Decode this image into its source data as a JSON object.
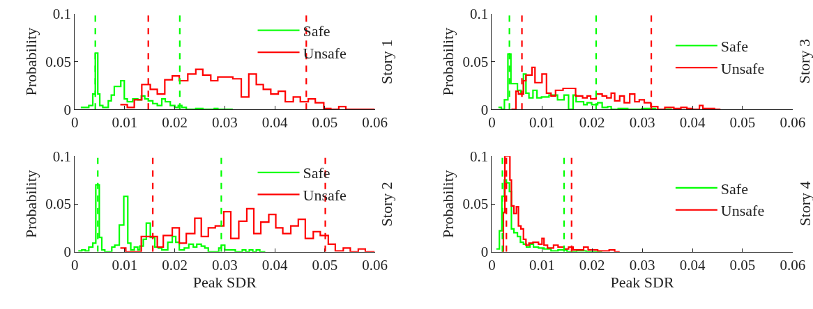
{
  "chart_data": [
    {
      "type": "step",
      "ylabel": "Probability",
      "annotations": [
        "Story 1"
      ],
      "xlim": [
        0,
        0.06
      ],
      "xticks": [
        0,
        0.01,
        0.02,
        0.03,
        0.04,
        0.05,
        0.06
      ],
      "ylim": [
        0,
        0.1
      ],
      "yticks": [
        0,
        0.05,
        0.1
      ],
      "legend": "top right",
      "marker": "none",
      "line_style": "solid",
      "series": [
        {
          "name": "Safe",
          "color": "#00ff00",
          "x": [
            0.0012,
            0.0028,
            0.0036,
            0.0041,
            0.0046,
            0.005,
            0.0056,
            0.0067,
            0.0073,
            0.0079,
            0.0092,
            0.0099,
            0.0105,
            0.0116,
            0.0126,
            0.0133,
            0.014,
            0.0147,
            0.0156,
            0.0165,
            0.0174,
            0.0181,
            0.0191,
            0.02,
            0.0207,
            0.0214,
            0.0223,
            0.0242,
            0.0256,
            0.0279,
            0.0286,
            0.0316
          ],
          "values": [
            0.002,
            0.004,
            0.016,
            0.059,
            0.016,
            0.004,
            0.002,
            0.009,
            0.015,
            0.024,
            0.03,
            0.011,
            0.008,
            0.011,
            0.01,
            0.014,
            0.011,
            0.009,
            0.006,
            0.004,
            0.011,
            0.008,
            0.004,
            0.002,
            0.004,
            0.002,
            0,
            0.001,
            0,
            0.001,
            0,
            0
          ]
        },
        {
          "name": "Unsafe",
          "color": "#ff0000",
          "x": [
            0.0091,
            0.0105,
            0.0119,
            0.0134,
            0.0151,
            0.0165,
            0.018,
            0.0195,
            0.0209,
            0.0226,
            0.0242,
            0.0256,
            0.0272,
            0.0286,
            0.0316,
            0.0333,
            0.0348,
            0.0363,
            0.0377,
            0.0392,
            0.0407,
            0.0421,
            0.0437,
            0.0451,
            0.0467,
            0.0481,
            0.0498,
            0.0512,
            0.0528,
            0.0542,
            0.0558,
            0.06
          ],
          "values": [
            0.005,
            0.002,
            0.01,
            0.026,
            0.021,
            0.016,
            0.031,
            0.035,
            0.03,
            0.037,
            0.042,
            0.036,
            0.03,
            0.034,
            0.032,
            0.013,
            0.037,
            0.026,
            0.021,
            0.016,
            0.019,
            0.008,
            0.013,
            0.008,
            0.011,
            0.007,
            0.001,
            0,
            0.003,
            0,
            0,
            0
          ]
        }
      ],
      "ref_lines": [
        {
          "axis": "x",
          "value": 0.0041,
          "color": "#00ff00",
          "line_style": "dashed"
        },
        {
          "axis": "x",
          "value": 0.021,
          "color": "#00ff00",
          "line_style": "dashed"
        },
        {
          "axis": "x",
          "value": 0.0147,
          "color": "#ff0000",
          "line_style": "dashed"
        },
        {
          "axis": "x",
          "value": 0.0463,
          "color": "#ff0000",
          "line_style": "dashed"
        }
      ]
    },
    {
      "type": "step",
      "ylabel": "Probability",
      "annotations": [
        "Story 3"
      ],
      "xlim": [
        0,
        0.06
      ],
      "xticks": [
        0,
        0.01,
        0.02,
        0.03,
        0.04,
        0.05,
        0.06
      ],
      "ylim": [
        0,
        0.1
      ],
      "yticks": [
        0,
        0.05,
        0.1
      ],
      "legend": "right",
      "marker": "none",
      "line_style": "solid",
      "series": [
        {
          "name": "Safe",
          "color": "#00ff00",
          "x": [
            0.0013,
            0.0019,
            0.0025,
            0.0032,
            0.0038,
            0.0051,
            0.0058,
            0.0063,
            0.0068,
            0.0074,
            0.0082,
            0.009,
            0.0099,
            0.0114,
            0.0131,
            0.0144,
            0.0153,
            0.0162,
            0.0168,
            0.0183,
            0.019,
            0.0199,
            0.0211,
            0.022,
            0.0231,
            0.0238,
            0.0252,
            0.0271,
            0.0299,
            0.0326,
            0.0359
          ],
          "values": [
            0.002,
            0,
            0.01,
            0.058,
            0.027,
            0.02,
            0.016,
            0.037,
            0.017,
            0.012,
            0.02,
            0.012,
            0.013,
            0.015,
            0.01,
            0.015,
            0,
            0.015,
            0.008,
            0.005,
            0.007,
            0.005,
            0.007,
            0.002,
            0.003,
            0,
            0.001,
            0,
            0.001,
            0,
            0
          ]
        },
        {
          "name": "Unsafe",
          "color": "#ff0000",
          "x": [
            0.0039,
            0.0048,
            0.0053,
            0.0063,
            0.0068,
            0.0074,
            0.008,
            0.0086,
            0.01,
            0.0109,
            0.0118,
            0.0127,
            0.0142,
            0.0167,
            0.0181,
            0.019,
            0.0197,
            0.0208,
            0.022,
            0.0229,
            0.0238,
            0.0245,
            0.0255,
            0.0264,
            0.0275,
            0.0285,
            0.0294,
            0.0304,
            0.0317,
            0.0331,
            0.0345,
            0.0363,
            0.0377,
            0.0389,
            0.04,
            0.0414,
            0.0421,
            0.0433,
            0.0444,
            0.0456
          ],
          "values": [
            0,
            0.019,
            0.016,
            0.03,
            0.036,
            0.036,
            0.044,
            0.028,
            0.037,
            0.017,
            0.014,
            0.02,
            0.022,
            0.014,
            0.012,
            0.014,
            0.011,
            0.016,
            0.014,
            0.012,
            0.017,
            0.009,
            0.014,
            0.007,
            0.016,
            0.008,
            0.01,
            0.007,
            0.003,
            0,
            0.002,
            0.001,
            0.002,
            0.001,
            0,
            0.004,
            0.001,
            0.001,
            0,
            0
          ]
        }
      ],
      "ref_lines": [
        {
          "axis": "x",
          "value": 0.0035,
          "color": "#00ff00",
          "line_style": "dashed"
        },
        {
          "axis": "x",
          "value": 0.0208,
          "color": "#00ff00",
          "line_style": "dashed"
        },
        {
          "axis": "x",
          "value": 0.006,
          "color": "#ff0000",
          "line_style": "dashed"
        },
        {
          "axis": "x",
          "value": 0.0318,
          "color": "#ff0000",
          "line_style": "dashed"
        }
      ]
    },
    {
      "type": "step",
      "xlabel": "Peak SDR",
      "ylabel": "Probability",
      "annotations": [
        "Story 2"
      ],
      "xlim": [
        0,
        0.06
      ],
      "xticks": [
        0,
        0.01,
        0.02,
        0.03,
        0.04,
        0.05,
        0.06
      ],
      "ylim": [
        0,
        0.1
      ],
      "yticks": [
        0,
        0.05,
        0.1
      ],
      "legend": "top right",
      "marker": "none",
      "line_style": "solid",
      "series": [
        {
          "name": "Safe",
          "color": "#00ff00",
          "x": [
            0.0007,
            0.0014,
            0.0021,
            0.0028,
            0.0036,
            0.0042,
            0.0049,
            0.0054,
            0.006,
            0.0074,
            0.008,
            0.0089,
            0.0098,
            0.0106,
            0.0112,
            0.0119,
            0.0126,
            0.013,
            0.0137,
            0.0143,
            0.0151,
            0.016,
            0.0167,
            0.0174,
            0.0186,
            0.0195,
            0.0202,
            0.0209,
            0.0219,
            0.0228,
            0.0237,
            0.0244,
            0.0253,
            0.026,
            0.0267,
            0.0288,
            0.0293,
            0.03,
            0.0312,
            0.0321,
            0.0335,
            0.0342,
            0.0349,
            0.0356,
            0.0363,
            0.037,
            0.0381
          ],
          "values": [
            0.001,
            0.002,
            0.001,
            0.005,
            0.009,
            0.07,
            0.015,
            0.002,
            0,
            0.005,
            0.007,
            0.028,
            0.058,
            0.009,
            0.002,
            0.005,
            0.002,
            0.006,
            0.013,
            0.03,
            0.015,
            0.005,
            0.004,
            0.002,
            0.01,
            0.016,
            0.01,
            0.002,
            0.004,
            0.008,
            0.005,
            0.008,
            0.006,
            0.004,
            0,
            0.004,
            0.007,
            0.002,
            0.002,
            0,
            0.002,
            0,
            0.002,
            0,
            0.002,
            0,
            0
          ]
        },
        {
          "name": "Unsafe",
          "color": "#ff0000",
          "x": [
            0.0091,
            0.0102,
            0.0133,
            0.0151,
            0.0165,
            0.0177,
            0.0195,
            0.0209,
            0.0223,
            0.024,
            0.0253,
            0.0267,
            0.0281,
            0.0298,
            0.0312,
            0.0328,
            0.0344,
            0.0358,
            0.0372,
            0.0388,
            0.0402,
            0.0416,
            0.0432,
            0.0447,
            0.0461,
            0.0477,
            0.0491,
            0.0507,
            0.0521,
            0.0537,
            0.0551,
            0.0567,
            0.0581,
            0.06
          ],
          "values": [
            0.004,
            0,
            0.016,
            0.016,
            0.005,
            0.017,
            0.025,
            0.009,
            0.019,
            0.035,
            0.016,
            0.025,
            0.027,
            0.042,
            0.014,
            0.032,
            0.045,
            0.019,
            0.031,
            0.039,
            0.025,
            0.019,
            0.027,
            0.034,
            0.014,
            0.021,
            0.017,
            0.008,
            0.001,
            0.004,
            0,
            0.003,
            0,
            0
          ]
        }
      ],
      "ref_lines": [
        {
          "axis": "x",
          "value": 0.0046,
          "color": "#00ff00",
          "line_style": "dashed"
        },
        {
          "axis": "x",
          "value": 0.0293,
          "color": "#00ff00",
          "line_style": "dashed"
        },
        {
          "axis": "x",
          "value": 0.0156,
          "color": "#ff0000",
          "line_style": "dashed"
        },
        {
          "axis": "x",
          "value": 0.0501,
          "color": "#ff0000",
          "line_style": "dashed"
        }
      ]
    },
    {
      "type": "step",
      "xlabel": "Peak SDR",
      "ylabel": "Probability",
      "annotations": [
        "Story 4"
      ],
      "xlim": [
        0,
        0.06
      ],
      "xticks": [
        0,
        0.01,
        0.02,
        0.03,
        0.04,
        0.05,
        0.06
      ],
      "ylim": [
        0,
        0.1
      ],
      "yticks": [
        0,
        0.05,
        0.1
      ],
      "legend": "right",
      "marker": "none",
      "line_style": "solid",
      "series": [
        {
          "name": "Safe",
          "color": "#00ff00",
          "x": [
            0.0009,
            0.0015,
            0.002,
            0.0025,
            0.0029,
            0.0035,
            0.0039,
            0.0044,
            0.0051,
            0.0057,
            0.0063,
            0.0069,
            0.0076,
            0.0083,
            0.0093,
            0.0104,
            0.0118,
            0.0132,
            0.015,
            0.0169,
            0.0188,
            0.022
          ],
          "values": [
            0.003,
            0.022,
            0.058,
            0.075,
            0.072,
            0.063,
            0.024,
            0.02,
            0.016,
            0.01,
            0.008,
            0.005,
            0.008,
            0.005,
            0.004,
            0.003,
            0.001,
            0.002,
            0,
            0.001,
            0,
            0
          ]
        },
        {
          "name": "Unsafe",
          "color": "#ff0000",
          "x": [
            0.002,
            0.0023,
            0.0026,
            0.003,
            0.0036,
            0.0039,
            0.0044,
            0.0049,
            0.0053,
            0.0058,
            0.0063,
            0.0068,
            0.0074,
            0.0082,
            0.0093,
            0.01,
            0.0104,
            0.0111,
            0.0123,
            0.0132,
            0.0144,
            0.0153,
            0.0162,
            0.0183,
            0.0192,
            0.0211,
            0.0234,
            0.0245,
            0.0255
          ],
          "values": [
            0,
            0.041,
            0.1,
            0.1,
            0.075,
            0.048,
            0.04,
            0.047,
            0.027,
            0.024,
            0.013,
            0.007,
            0.009,
            0.01,
            0.008,
            0.014,
            0.007,
            0.004,
            0.007,
            0.005,
            0.003,
            0.005,
            0.002,
            0.005,
            0.002,
            0.001,
            0.002,
            0,
            0
          ]
        }
      ],
      "ref_lines": [
        {
          "axis": "x",
          "value": 0.0021,
          "color": "#00ff00",
          "line_style": "dashed"
        },
        {
          "axis": "x",
          "value": 0.0144,
          "color": "#00ff00",
          "line_style": "dashed"
        },
        {
          "axis": "x",
          "value": 0.0029,
          "color": "#ff0000",
          "line_style": "dashed"
        },
        {
          "axis": "x",
          "value": 0.0159,
          "color": "#ff0000",
          "line_style": "dashed"
        }
      ]
    }
  ]
}
